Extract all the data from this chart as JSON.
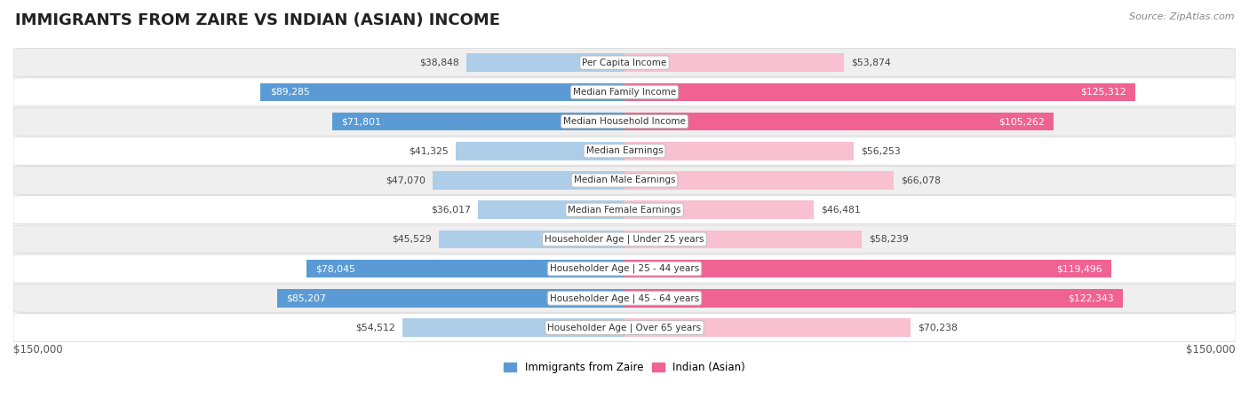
{
  "title": "IMMIGRANTS FROM ZAIRE VS INDIAN (ASIAN) INCOME",
  "source": "Source: ZipAtlas.com",
  "categories": [
    "Per Capita Income",
    "Median Family Income",
    "Median Household Income",
    "Median Earnings",
    "Median Male Earnings",
    "Median Female Earnings",
    "Householder Age | Under 25 years",
    "Householder Age | 25 - 44 years",
    "Householder Age | 45 - 64 years",
    "Householder Age | Over 65 years"
  ],
  "zaire_values": [
    38848,
    89285,
    71801,
    41325,
    47070,
    36017,
    45529,
    78045,
    85207,
    54512
  ],
  "indian_values": [
    53874,
    125312,
    105262,
    56253,
    66078,
    46481,
    58239,
    119496,
    122343,
    70238
  ],
  "zaire_labels": [
    "$38,848",
    "$89,285",
    "$71,801",
    "$41,325",
    "$47,070",
    "$36,017",
    "$45,529",
    "$78,045",
    "$85,207",
    "$54,512"
  ],
  "indian_labels": [
    "$53,874",
    "$125,312",
    "$105,262",
    "$56,253",
    "$66,078",
    "$46,481",
    "$58,239",
    "$119,496",
    "$122,343",
    "$70,238"
  ],
  "zaire_color_light": "#aecde8",
  "zaire_color_dark": "#5b9bd5",
  "indian_color_light": "#f8c0d0",
  "indian_color_dark": "#f06292",
  "zaire_dark_threshold": 65000,
  "indian_dark_threshold": 100000,
  "max_value": 150000,
  "x_label_left": "$150,000",
  "x_label_right": "$150,000",
  "legend_zaire": "Immigrants from Zaire",
  "legend_indian": "Indian (Asian)",
  "bar_height": 0.62,
  "row_bg_even": "#efefef",
  "row_bg_odd": "#ffffff",
  "label_inside_color": "white",
  "label_outside_color": "#444444",
  "center_label_color": "#333333",
  "title_color": "#222222",
  "source_color": "#888888"
}
